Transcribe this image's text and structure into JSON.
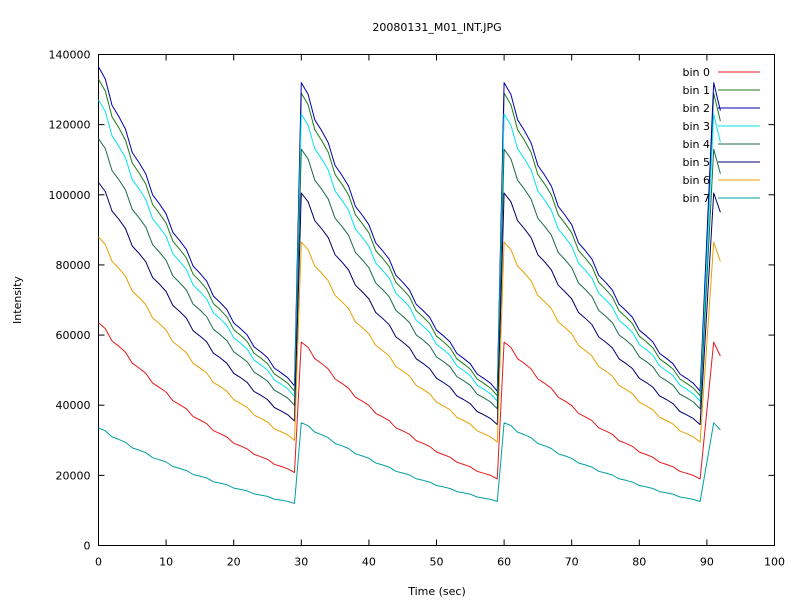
{
  "chart_data": {
    "type": "line",
    "title": "20080131_M01_INT.JPG",
    "xlabel": "Time (sec)",
    "ylabel": "Intensity",
    "xlim": [
      0,
      100
    ],
    "ylim": [
      0,
      140000
    ],
    "xticks": [
      0,
      10,
      20,
      30,
      40,
      50,
      60,
      70,
      80,
      90,
      100
    ],
    "yticks": [
      0,
      20000,
      40000,
      60000,
      80000,
      100000,
      120000,
      140000
    ],
    "grid": false,
    "legend_position": "top-right",
    "x": [
      0,
      1,
      2,
      3,
      4,
      5,
      6,
      7,
      8,
      9,
      10,
      11,
      12,
      13,
      14,
      15,
      16,
      17,
      18,
      19,
      20,
      21,
      22,
      23,
      24,
      25,
      26,
      27,
      28,
      29,
      30,
      31,
      32,
      33,
      34,
      35,
      36,
      37,
      38,
      39,
      40,
      41,
      42,
      43,
      44,
      45,
      46,
      47,
      48,
      49,
      50,
      51,
      52,
      53,
      54,
      55,
      56,
      57,
      58,
      59,
      60,
      61,
      62,
      63,
      64,
      65,
      66,
      67,
      68,
      69,
      70,
      71,
      72,
      73,
      74,
      75,
      76,
      77,
      78,
      79,
      80,
      81,
      82,
      83,
      84,
      85,
      86,
      87,
      88,
      89,
      90,
      91,
      92
    ],
    "cycle_x": [
      0,
      1,
      2,
      3,
      4,
      5,
      6,
      7,
      8,
      9,
      10,
      11,
      12,
      13,
      14,
      15,
      16,
      17,
      18,
      19,
      20,
      21,
      22,
      23,
      24,
      25,
      26,
      27,
      28,
      29
    ],
    "series": [
      {
        "name": "bin 0",
        "color": "#e41a1c",
        "start": 63500,
        "end": 20800,
        "spike": 58000,
        "last": 54000
      },
      {
        "name": "bin 1",
        "color": "#1b7a1b",
        "start": 133000,
        "end": 44000,
        "spike": 129000,
        "last": 121000
      },
      {
        "name": "bin 2",
        "color": "#0000a8",
        "start": 136500,
        "end": 45500,
        "spike": 132000,
        "last": 124000
      },
      {
        "name": "bin 3",
        "color": "#00e5ee",
        "start": 127000,
        "end": 42500,
        "spike": 123000,
        "last": 115000
      },
      {
        "name": "bin 4",
        "color": "#1b6b45",
        "start": 116000,
        "end": 40000,
        "spike": 113000,
        "last": 106000
      },
      {
        "name": "bin 5",
        "color": "#00006b",
        "start": 103500,
        "end": 35500,
        "spike": 100500,
        "last": 95000
      },
      {
        "name": "bin 6",
        "color": "#e8a000",
        "start": 88000,
        "end": 30000,
        "spike": 86500,
        "last": 81000
      },
      {
        "name": "bin 7",
        "color": "#00a0a0",
        "start": 33500,
        "end": 12000,
        "spike": 35000,
        "last": 33000
      }
    ]
  }
}
